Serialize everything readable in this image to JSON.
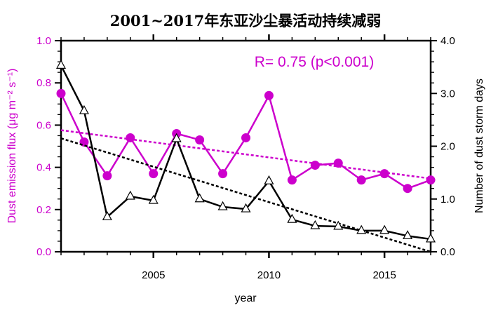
{
  "chart_data": {
    "type": "line",
    "title": "2001~2017年东亚沙尘暴活动持续减弱",
    "xlabel": "year",
    "ylabel_left": "Dust emission flux (μg m⁻² s⁻¹)",
    "ylabel_right": "Number of dust storm days",
    "annotation": "R= 0.75 (p<0.001)",
    "x": [
      2001,
      2002,
      2003,
      2004,
      2005,
      2006,
      2007,
      2008,
      2009,
      2010,
      2011,
      2012,
      2013,
      2014,
      2015,
      2016,
      2017
    ],
    "xlim": [
      2001,
      2017
    ],
    "x_tick_labels": [
      "2005",
      "2010",
      "2015"
    ],
    "ylim_left": [
      0,
      1.0
    ],
    "y_tick_labels_left": [
      "0.0",
      "0.2",
      "0.4",
      "0.6",
      "0.8",
      "1.0"
    ],
    "ylim_right": [
      0,
      4.0
    ],
    "y_tick_labels_right": [
      "0.0",
      "1.0",
      "2.0",
      "3.0",
      "4.0"
    ],
    "grid": false,
    "series": [
      {
        "name": "Dust emission flux",
        "axis": "left",
        "color": "#cc00cc",
        "marker": "circle",
        "values": [
          0.75,
          0.52,
          0.36,
          0.54,
          0.37,
          0.56,
          0.53,
          0.37,
          0.54,
          0.74,
          0.34,
          0.41,
          0.42,
          0.34,
          0.37,
          0.3,
          0.34
        ],
        "trend": [
          0.576,
          0.347
        ]
      },
      {
        "name": "Number of dust storm days",
        "axis": "right",
        "color": "#000000",
        "marker": "triangle",
        "values": [
          3.53,
          2.67,
          0.66,
          1.05,
          0.97,
          2.14,
          1.0,
          0.85,
          0.81,
          1.34,
          0.61,
          0.49,
          0.48,
          0.4,
          0.4,
          0.3,
          0.24
        ],
        "trend": [
          2.15,
          0.0
        ]
      }
    ]
  }
}
